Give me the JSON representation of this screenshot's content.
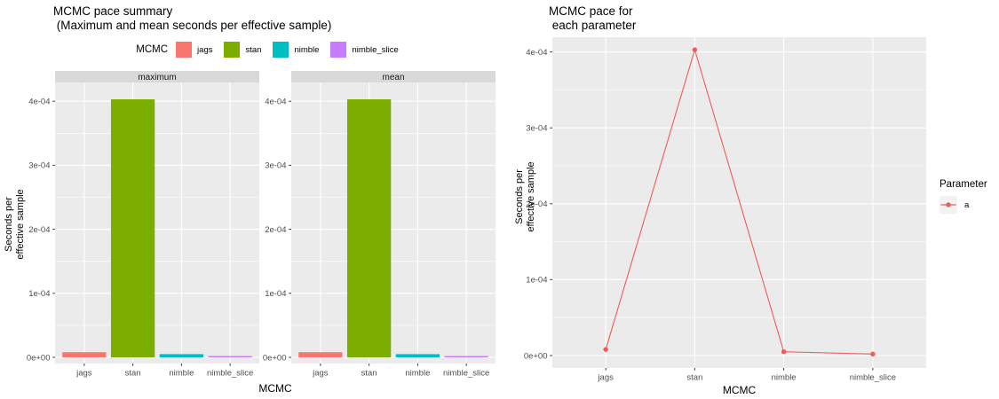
{
  "chart_data": [
    {
      "id": "mcmc-pace-summary",
      "type": "bar",
      "title": "MCMC pace summary",
      "subtitle": " (Maximum and mean seconds per effective sample)",
      "facets": [
        "maximum",
        "mean"
      ],
      "categories": [
        "jags",
        "stan",
        "nimble",
        "nimble_slice"
      ],
      "series": [
        {
          "name": "maximum",
          "values": [
            8e-06,
            0.000403,
            5e-06,
            2e-06
          ]
        },
        {
          "name": "mean",
          "values": [
            8e-06,
            0.000403,
            5e-06,
            2e-06
          ]
        }
      ],
      "colors": [
        "#F8766D",
        "#7CAE00",
        "#00BFC4",
        "#C77CFF"
      ],
      "xlabel": "MCMC",
      "ylabel_lines": [
        "Seconds per",
        "effective sample"
      ],
      "y_ticks": [
        {
          "value": 0.0,
          "label": "0e+00"
        },
        {
          "value": 0.0001,
          "label": "1e-04"
        },
        {
          "value": 0.0002,
          "label": "2e-04"
        },
        {
          "value": 0.0003,
          "label": "3e-04"
        },
        {
          "value": 0.0004,
          "label": "4e-04"
        }
      ],
      "y_minor": [
        5e-05,
        0.00015,
        0.00025,
        0.00035
      ],
      "ylim": [
        0,
        0.00043
      ],
      "grid": true,
      "legend": {
        "position": "top",
        "title": "MCMC",
        "items": [
          {
            "label": "jags",
            "color": "#F8766D"
          },
          {
            "label": "stan",
            "color": "#7CAE00"
          },
          {
            "label": "nimble",
            "color": "#00BFC4"
          },
          {
            "label": "nimble_slice",
            "color": "#C77CFF"
          }
        ]
      },
      "theme": {
        "panel_bg": "#EBEBEB",
        "strip_bg": "#D9D9D9",
        "grid_color": "#FFFFFF",
        "tick_text": "#4D4D4D",
        "strip_text": "#1A1A1A",
        "tick_mark": "#333333"
      }
    },
    {
      "id": "mcmc-pace-per-parameter",
      "type": "line",
      "title": "MCMC pace for\n each parameter",
      "categories": [
        "jags",
        "stan",
        "nimble",
        "nimble_slice"
      ],
      "series": [
        {
          "name": "a",
          "color": "#EE5C55",
          "values": [
            8e-06,
            0.000403,
            5e-06,
            2e-06
          ]
        }
      ],
      "xlabel": "MCMC",
      "ylabel_lines": [
        "Seconds per",
        "effective sample"
      ],
      "y_ticks": [
        {
          "value": 0.0,
          "label": "0e+00"
        },
        {
          "value": 0.0001,
          "label": "1e-04"
        },
        {
          "value": 0.0002,
          "label": "2e-04"
        },
        {
          "value": 0.0003,
          "label": "3e-04"
        },
        {
          "value": 0.0004,
          "label": "4e-04"
        }
      ],
      "y_minor": [
        5e-05,
        0.00015,
        0.00025,
        0.00035
      ],
      "ylim": [
        0,
        0.000425
      ],
      "grid": true,
      "legend": {
        "position": "right",
        "title": "Parameter",
        "items": [
          {
            "label": "a",
            "color": "#EE5C55"
          }
        ]
      },
      "theme": {
        "panel_bg": "#EBEBEB",
        "key_bg": "#F2F2F2",
        "grid_color": "#FFFFFF",
        "tick_text": "#4D4D4D",
        "tick_mark": "#333333"
      }
    }
  ]
}
